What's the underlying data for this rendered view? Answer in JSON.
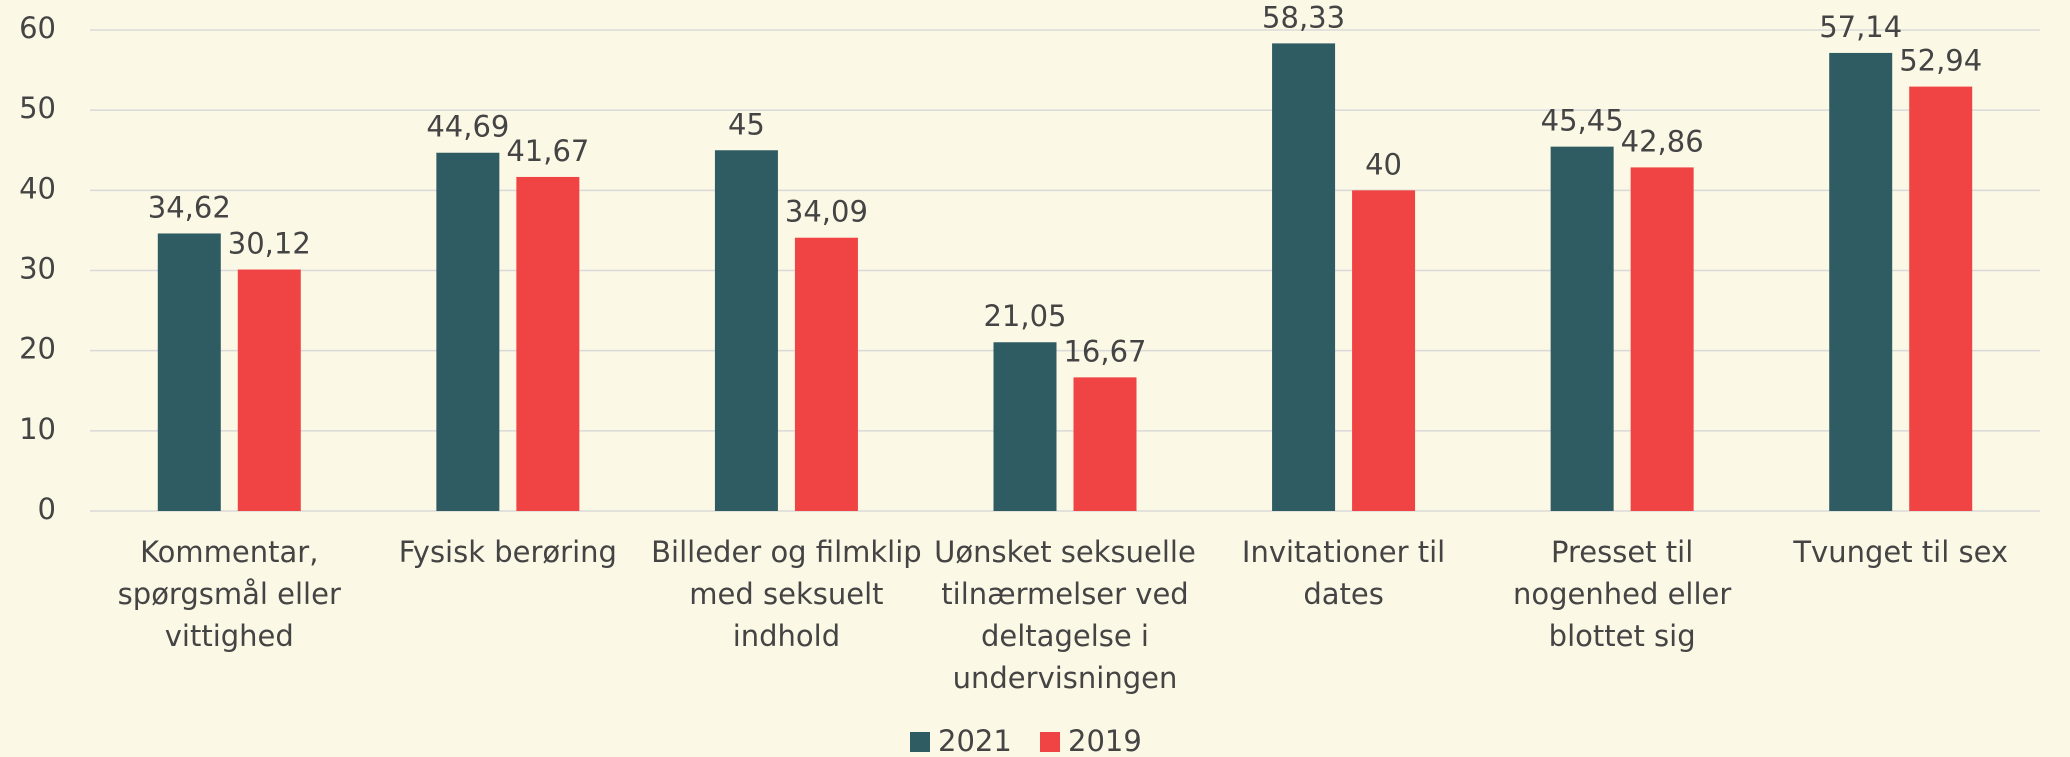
{
  "chart_data": {
    "type": "bar",
    "categories": [
      [
        "Kommentar,",
        "spørgsmål eller",
        "vittighed"
      ],
      [
        "Fysisk berøring"
      ],
      [
        "Billeder og filmklip",
        "med seksuelt",
        "indhold"
      ],
      [
        "Uønsket seksuelle",
        "tilnærmelser ved",
        "deltagelse i",
        "undervisningen"
      ],
      [
        "Invitationer til",
        "dates"
      ],
      [
        "Presset til",
        "nogenhed eller",
        "blottet sig"
      ],
      [
        "Tvunget til sex"
      ]
    ],
    "series": [
      {
        "name": "2021",
        "color": "#2f5b62",
        "values": [
          34.62,
          44.69,
          45,
          21.05,
          58.33,
          45.45,
          57.14
        ],
        "value_labels": [
          "34,62",
          "44,69",
          "45",
          "21,05",
          "58,33",
          "45,45",
          "57,14"
        ]
      },
      {
        "name": "2019",
        "color": "#f04343",
        "values": [
          30.12,
          41.67,
          34.09,
          16.67,
          40,
          42.86,
          52.94
        ],
        "value_labels": [
          "30,12",
          "41,67",
          "34,09",
          "16,67",
          "40",
          "42,86",
          "52,94"
        ]
      }
    ],
    "ylim": [
      0,
      60
    ],
    "yticks": [
      0,
      10,
      20,
      30,
      40,
      50,
      60
    ],
    "grid": true,
    "legend": "bottom"
  }
}
